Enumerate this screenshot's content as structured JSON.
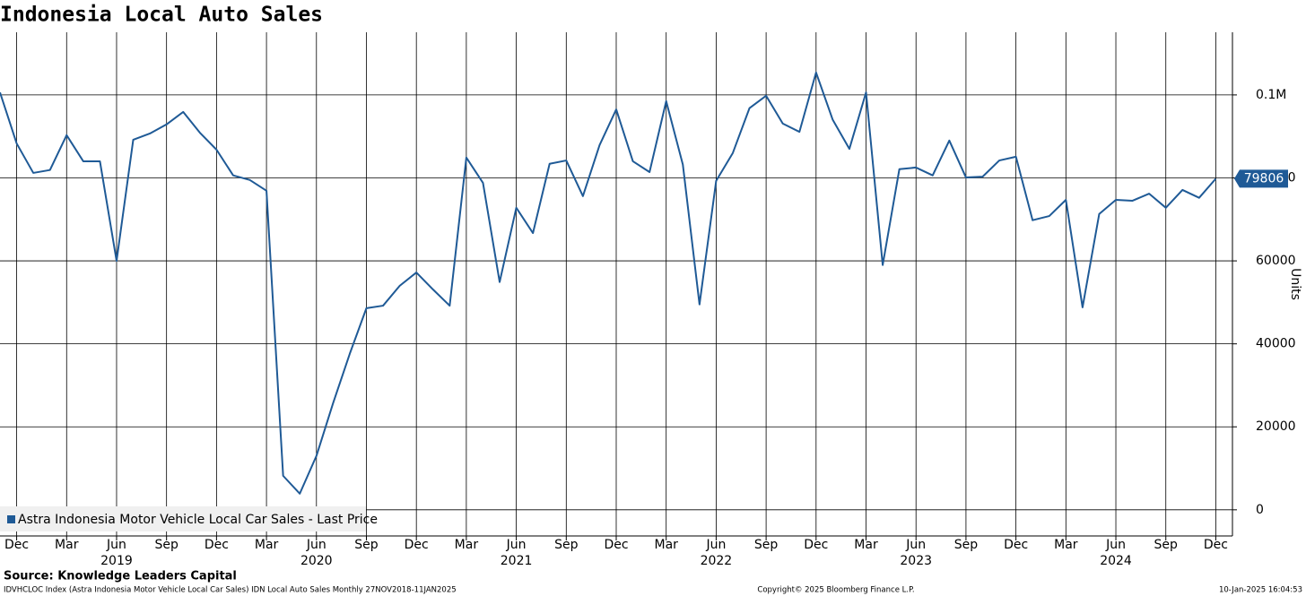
{
  "chart_data": {
    "type": "line",
    "title": "Indonesia Local Auto Sales",
    "y_axis_label": "Units",
    "source": "Source: Knowledge Leaders Capital",
    "footer_left": "IDVHCLOC Index (Astra Indonesia Motor Vehicle Local Car Sales) IDN Local Auto Sales  Monthly 27NOV2018-11JAN2025",
    "footer_center": "Copyright© 2025 Bloomberg Finance L.P.",
    "footer_right": "10-Jan-2025 16:04:53",
    "x": [
      "2018-11",
      "2018-12",
      "2019-01",
      "2019-02",
      "2019-03",
      "2019-04",
      "2019-05",
      "2019-06",
      "2019-07",
      "2019-08",
      "2019-09",
      "2019-10",
      "2019-11",
      "2019-12",
      "2020-01",
      "2020-02",
      "2020-03",
      "2020-04",
      "2020-05",
      "2020-06",
      "2020-07",
      "2020-08",
      "2020-09",
      "2020-10",
      "2020-11",
      "2020-12",
      "2021-01",
      "2021-02",
      "2021-03",
      "2021-04",
      "2021-05",
      "2021-06",
      "2021-07",
      "2021-08",
      "2021-09",
      "2021-10",
      "2021-11",
      "2021-12",
      "2022-01",
      "2022-02",
      "2022-03",
      "2022-04",
      "2022-05",
      "2022-06",
      "2022-07",
      "2022-08",
      "2022-09",
      "2022-10",
      "2022-11",
      "2022-12",
      "2023-01",
      "2023-02",
      "2023-03",
      "2023-04",
      "2023-05",
      "2023-06",
      "2023-07",
      "2023-08",
      "2023-09",
      "2023-10",
      "2023-11",
      "2023-12",
      "2024-01",
      "2024-02",
      "2024-03",
      "2024-04",
      "2024-05",
      "2024-06",
      "2024-07",
      "2024-08",
      "2024-09",
      "2024-10",
      "2024-11",
      "2024-12"
    ],
    "series": [
      {
        "name": "Astra Indonesia Motor Vehicle Local Car Sales - Last Price",
        "color": "#1f5a96",
        "values": [
          100600,
          88300,
          81200,
          81900,
          90300,
          84000,
          84000,
          60000,
          89200,
          90700,
          92900,
          95900,
          90900,
          86800,
          80600,
          79500,
          76900,
          8200,
          3900,
          13000,
          25700,
          37600,
          48600,
          49200,
          54000,
          57200,
          53100,
          49200,
          84900,
          78800,
          54900,
          72800,
          66700,
          83400,
          84200,
          75600,
          87900,
          96500,
          84000,
          81400,
          98500,
          83200,
          49500,
          79300,
          86000,
          96800,
          99800,
          93100,
          91100,
          105400,
          94000,
          87000,
          100600,
          59000,
          82100,
          82500,
          80600,
          89000,
          80100,
          80300,
          84200,
          85100,
          69800,
          70800,
          74700,
          48800,
          71300,
          74700,
          74500,
          76200,
          72800,
          77100,
          75200,
          79806
        ]
      }
    ],
    "xlim": [
      "2018-11",
      "2025-01"
    ],
    "xticks": [
      {
        "value": "2018-12",
        "label": "Dec"
      },
      {
        "value": "2019-03",
        "label": "Mar"
      },
      {
        "value": "2019-06",
        "label": "Jun"
      },
      {
        "value": "2019-09",
        "label": "Sep"
      },
      {
        "value": "2019-12",
        "label": "Dec"
      },
      {
        "value": "2020-03",
        "label": "Mar"
      },
      {
        "value": "2020-06",
        "label": "Jun"
      },
      {
        "value": "2020-09",
        "label": "Sep"
      },
      {
        "value": "2020-12",
        "label": "Dec"
      },
      {
        "value": "2021-03",
        "label": "Mar"
      },
      {
        "value": "2021-06",
        "label": "Jun"
      },
      {
        "value": "2021-09",
        "label": "Sep"
      },
      {
        "value": "2021-12",
        "label": "Dec"
      },
      {
        "value": "2022-03",
        "label": "Mar"
      },
      {
        "value": "2022-06",
        "label": "Jun"
      },
      {
        "value": "2022-09",
        "label": "Sep"
      },
      {
        "value": "2022-12",
        "label": "Dec"
      },
      {
        "value": "2023-03",
        "label": "Mar"
      },
      {
        "value": "2023-06",
        "label": "Jun"
      },
      {
        "value": "2023-09",
        "label": "Sep"
      },
      {
        "value": "2023-12",
        "label": "Dec"
      },
      {
        "value": "2024-03",
        "label": "Mar"
      },
      {
        "value": "2024-06",
        "label": "Jun"
      },
      {
        "value": "2024-09",
        "label": "Sep"
      },
      {
        "value": "2024-12",
        "label": "Dec"
      }
    ],
    "year_labels": [
      {
        "value": "2019-06",
        "label": "2019"
      },
      {
        "value": "2020-06",
        "label": "2020"
      },
      {
        "value": "2021-06",
        "label": "2021"
      },
      {
        "value": "2022-06",
        "label": "2022"
      },
      {
        "value": "2023-06",
        "label": "2023"
      },
      {
        "value": "2024-06",
        "label": "2024"
      }
    ],
    "ylim": [
      -6300,
      115100
    ],
    "yticks": [
      0,
      20000,
      40000,
      60000,
      80000,
      {
        "value": 100000,
        "label": "0.1M"
      }
    ],
    "grid": true,
    "legend": "lower left"
  }
}
